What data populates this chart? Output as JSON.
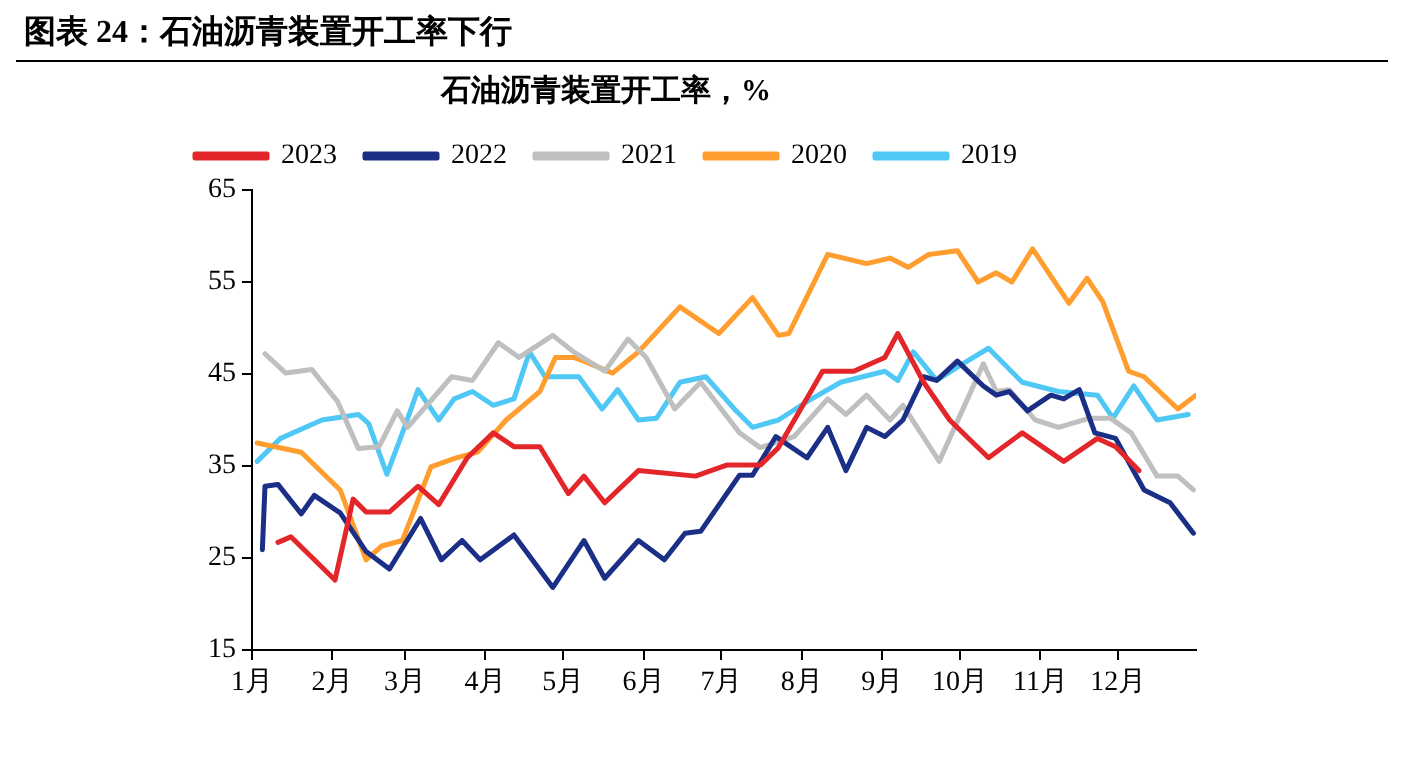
{
  "chart_data": {
    "type": "line",
    "title": "图表 24：石油沥青装置开工率下行",
    "subtitle": "石油沥青装置开工率，%",
    "xlim": [
      "--01-01",
      "--12-31"
    ],
    "xticks": [
      {
        "value": "--01-01",
        "label": "1月"
      },
      {
        "value": "--02-01",
        "label": "2月"
      },
      {
        "value": "--03-01",
        "label": "3月"
      },
      {
        "value": "--04-01",
        "label": "4月"
      },
      {
        "value": "--05-01",
        "label": "5月"
      },
      {
        "value": "--06-01",
        "label": "6月"
      },
      {
        "value": "--07-01",
        "label": "7月"
      },
      {
        "value": "--08-01",
        "label": "8月"
      },
      {
        "value": "--09-01",
        "label": "9月"
      },
      {
        "value": "--10-01",
        "label": "10月"
      },
      {
        "value": "--11-01",
        "label": "11月"
      },
      {
        "value": "--12-01",
        "label": "12月"
      }
    ],
    "ylim": [
      15,
      65
    ],
    "yticks": [
      15,
      25,
      35,
      45,
      55,
      65
    ],
    "grid": false,
    "legend": "top",
    "marker": "none",
    "line_style": "solid",
    "series": [
      {
        "name": "2023",
        "color": "#e3262a",
        "x": [
          "--01-11",
          "--01-16",
          "--02-02",
          "--02-09",
          "--02-14",
          "--02-23",
          "--03-06",
          "--03-14",
          "--03-25",
          "--04-04",
          "--04-12",
          "--04-22",
          "--05-03",
          "--05-09",
          "--05-17",
          "--05-30",
          "--06-21",
          "--07-03",
          "--07-16",
          "--07-23",
          "--08-09",
          "--08-21",
          "--09-02",
          "--09-07",
          "--09-17",
          "--09-27",
          "--10-12",
          "--10-25",
          "--11-10",
          "--11-23",
          "--11-30",
          "--12-09"
        ],
        "values": [
          26.7,
          27.3,
          22.6,
          31.4,
          30,
          30,
          32.8,
          30.8,
          35.9,
          38.6,
          37.1,
          37.1,
          32,
          33.9,
          31,
          34.5,
          33.9,
          35.1,
          35.1,
          37,
          45.3,
          45.3,
          46.8,
          49.4,
          44.1,
          40,
          35.9,
          38.6,
          35.5,
          38,
          37.1,
          34.5
        ]
      },
      {
        "name": "2022",
        "color": "#1a2f85",
        "x": [
          "--01-05",
          "--01-06",
          "--01-11",
          "--01-20",
          "--01-25",
          "--02-04",
          "--02-14",
          "--02-23",
          "--03-07",
          "--03-15",
          "--03-23",
          "--03-30",
          "--04-12",
          "--04-27",
          "--05-09",
          "--05-17",
          "--05-30",
          "--06-09",
          "--06-17",
          "--06-23",
          "--07-08",
          "--07-13",
          "--07-22",
          "--08-03",
          "--08-11",
          "--08-18",
          "--08-26",
          "--09-02",
          "--09-09",
          "--09-17",
          "--09-22",
          "--09-30",
          "--10-10",
          "--10-15",
          "--10-20",
          "--10-27",
          "--11-05",
          "--11-10",
          "--11-16",
          "--11-22",
          "--11-30",
          "--12-11",
          "--12-21",
          "--12-30"
        ],
        "values": [
          25.9,
          32.8,
          33,
          29.8,
          31.8,
          29.9,
          25.7,
          23.8,
          29.3,
          24.8,
          26.9,
          24.8,
          27.5,
          21.8,
          26.9,
          22.8,
          26.9,
          24.8,
          27.7,
          27.9,
          34,
          34,
          38.2,
          35.9,
          39.2,
          34.5,
          39.2,
          38.2,
          40,
          44.7,
          44.3,
          46.4,
          43.7,
          42.7,
          43.1,
          41,
          42.7,
          42.3,
          43.3,
          38.6,
          38,
          32.4,
          31,
          27.7
        ]
      },
      {
        "name": "2021",
        "color": "#bfbfbf",
        "x": [
          "--01-06",
          "--01-14",
          "--01-24",
          "--02-03",
          "--02-11",
          "--02-19",
          "--02-26",
          "--03-02",
          "--03-19",
          "--03-27",
          "--04-06",
          "--04-14",
          "--04-27",
          "--05-05",
          "--05-17",
          "--05-26",
          "--06-02",
          "--06-13",
          "--06-23",
          "--07-08",
          "--07-16",
          "--07-29",
          "--08-11",
          "--08-18",
          "--08-26",
          "--09-04",
          "--09-09",
          "--09-23",
          "--10-10",
          "--10-15",
          "--10-20",
          "--10-30",
          "--11-08",
          "--11-20",
          "--11-28",
          "--12-06",
          "--12-16",
          "--12-24",
          "--12-30"
        ],
        "values": [
          47.2,
          45.1,
          45.5,
          42,
          36.9,
          37.1,
          41,
          39.2,
          44.7,
          44.3,
          48.4,
          46.8,
          49.2,
          47.4,
          45.3,
          48.8,
          46.8,
          41.2,
          44.1,
          38.6,
          37,
          38.2,
          42.3,
          40.6,
          42.7,
          40,
          41.6,
          35.5,
          46.1,
          43.1,
          43.3,
          40,
          39.2,
          40.2,
          40.2,
          38.6,
          33.9,
          33.9,
          32.4
        ]
      },
      {
        "name": "2020",
        "color": "#ff9d2e",
        "x": [
          "--01-03",
          "--01-20",
          "--02-04",
          "--02-14",
          "--02-20",
          "--02-28",
          "--03-11",
          "--03-21",
          "--03-29",
          "--04-09",
          "--04-22",
          "--04-28",
          "--05-05",
          "--05-09",
          "--05-20",
          "--05-30",
          "--06-15",
          "--06-30",
          "--07-13",
          "--07-23",
          "--07-27",
          "--08-11",
          "--08-26",
          "--09-04",
          "--09-11",
          "--09-19",
          "--09-30",
          "--10-08",
          "--10-15",
          "--10-21",
          "--10-29",
          "--11-12",
          "--11-19",
          "--11-25",
          "--12-05",
          "--12-11",
          "--12-24",
          "--12-31"
        ],
        "values": [
          37.5,
          36.5,
          32.4,
          24.8,
          26.3,
          26.9,
          34.9,
          35.9,
          36.5,
          40,
          43.1,
          46.8,
          46.8,
          46.4,
          45.1,
          47.4,
          52.3,
          49.4,
          53.3,
          49.2,
          49.4,
          58,
          57,
          57.6,
          56.6,
          58,
          58.4,
          55,
          56,
          55,
          58.6,
          52.7,
          55.4,
          52.9,
          45.3,
          44.7,
          41.2,
          42.7
        ]
      },
      {
        "name": "2019",
        "color": "#4fc8f5",
        "x": [
          "--01-03",
          "--01-12",
          "--01-28",
          "--02-11",
          "--02-15",
          "--02-22",
          "--02-28",
          "--03-06",
          "--03-14",
          "--03-20",
          "--03-27",
          "--04-04",
          "--04-12",
          "--04-18",
          "--04-24",
          "--05-07",
          "--05-16",
          "--05-22",
          "--05-30",
          "--06-06",
          "--06-15",
          "--06-25",
          "--07-06",
          "--07-13",
          "--07-23",
          "--08-03",
          "--08-16",
          "--09-02",
          "--09-07",
          "--09-13",
          "--09-22",
          "--10-02",
          "--10-12",
          "--10-25",
          "--11-08",
          "--11-23",
          "--11-29",
          "--12-07",
          "--12-16",
          "--12-28"
        ],
        "values": [
          35.5,
          38,
          40,
          40.6,
          39.6,
          34.1,
          38.6,
          43.3,
          40,
          42.3,
          43.1,
          41.6,
          42.3,
          47.4,
          44.7,
          44.7,
          41.2,
          43.3,
          40,
          40.2,
          44.1,
          44.7,
          41.2,
          39.2,
          40,
          42,
          44.1,
          45.3,
          44.3,
          47.4,
          44.3,
          46.1,
          47.8,
          44.1,
          43.1,
          42.7,
          40.2,
          43.7,
          40,
          40.6
        ]
      }
    ]
  }
}
